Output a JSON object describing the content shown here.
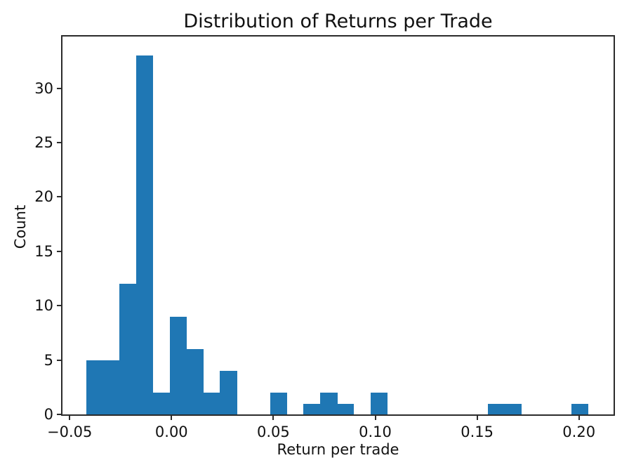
{
  "chart_data": {
    "type": "bar",
    "kind": "histogram",
    "title": "Distribution of Returns per Trade",
    "xlabel": "Return per trade",
    "ylabel": "Count",
    "bar_color": "#1f77b4",
    "axis_color": "#2b2b2b",
    "text_color": "#111111",
    "background_color": "#ffffff",
    "grid": false,
    "legend": null,
    "n_bins": 30,
    "bin_start": -0.0419,
    "bin_width": 0.008211,
    "counts": [
      5,
      5,
      12,
      33,
      2,
      9,
      6,
      2,
      4,
      0,
      0,
      2,
      0,
      1,
      2,
      1,
      0,
      2,
      0,
      0,
      0,
      0,
      0,
      0,
      1,
      1,
      0,
      0,
      0,
      1
    ],
    "max_count": 33,
    "xlim": [
      -0.0535,
      0.217
    ],
    "ylim": [
      0,
      34.75
    ],
    "xticks": {
      "values": [
        -0.05,
        0.0,
        0.05,
        0.1,
        0.15,
        0.2
      ],
      "labels": [
        "−0.05",
        "0.00",
        "0.05",
        "0.10",
        "0.15",
        "0.20"
      ]
    },
    "yticks": {
      "values": [
        0,
        5,
        10,
        15,
        20,
        25,
        30
      ],
      "labels": [
        "0",
        "5",
        "10",
        "15",
        "20",
        "25",
        "30"
      ]
    }
  }
}
